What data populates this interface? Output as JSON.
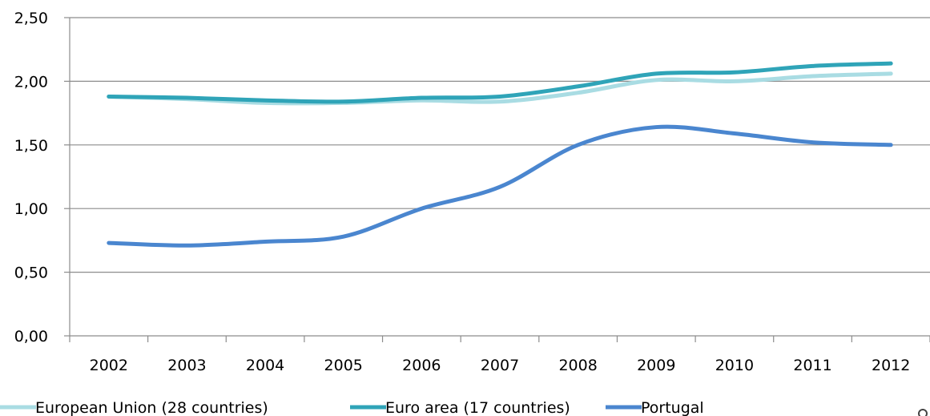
{
  "chart_data": {
    "type": "line",
    "title": "",
    "xlabel": "",
    "ylabel": "",
    "categories": [
      "2002",
      "2003",
      "2004",
      "2005",
      "2006",
      "2007",
      "2008",
      "2009",
      "2010",
      "2011",
      "2012"
    ],
    "y_ticks": [
      "0,00",
      "0,50",
      "1,00",
      "1,50",
      "2,00",
      "2,50"
    ],
    "ylim": [
      0,
      2.5
    ],
    "grid": "horizontal",
    "legend_position": "bottom",
    "series": [
      {
        "name": "European Union (28 countries)",
        "color": "#a9dce3",
        "values": [
          1.88,
          1.86,
          1.83,
          1.83,
          1.85,
          1.84,
          1.91,
          2.01,
          2.0,
          2.04,
          2.06
        ]
      },
      {
        "name": "Euro area (17 countries)",
        "color": "#2fa4b8",
        "values": [
          1.88,
          1.87,
          1.85,
          1.84,
          1.87,
          1.88,
          1.96,
          2.06,
          2.07,
          2.12,
          2.14
        ]
      },
      {
        "name": "Portugal",
        "color": "#4a86cf",
        "values": [
          0.73,
          0.71,
          0.74,
          0.78,
          1.0,
          1.17,
          1.5,
          1.64,
          1.59,
          1.52,
          1.5
        ]
      }
    ]
  }
}
